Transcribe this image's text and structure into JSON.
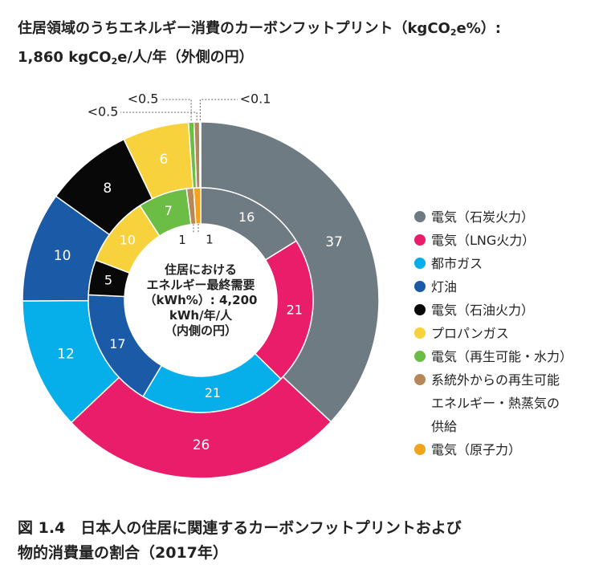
{
  "title": {
    "line1_a": "住居領域のうちエネルギー消費のカーボンフットプリント（kgCO",
    "line1_sub": "2",
    "line1_b": "e%）:",
    "line2_a": "1,860 kgCO",
    "line2_sub": "2",
    "line2_b": "e/人/年（外側の円）"
  },
  "center_label": [
    "住居における",
    "エネルギー最終需要",
    "（kWh%）: 4,200",
    "kWh/年/人",
    "（内側の円）"
  ],
  "legend": [
    {
      "key": "coal",
      "label": "電気（石炭火力）",
      "color": "#6f7b82"
    },
    {
      "key": "lng",
      "label": "電気（LNG火力）",
      "color": "#ea1d6b"
    },
    {
      "key": "city_gas",
      "label": "都市ガス",
      "color": "#06aeea"
    },
    {
      "key": "kerosene",
      "label": "灯油",
      "color": "#1a5aa6"
    },
    {
      "key": "oil",
      "label": "電気（石油火力）",
      "color": "#080808"
    },
    {
      "key": "propane",
      "label": "プロパンガス",
      "color": "#f8d23d"
    },
    {
      "key": "renewable",
      "label": "電気（再生可能・水力）",
      "color": "#6cbd45"
    },
    {
      "key": "offgrid",
      "label": "系統外からの再生可能\nエネルギー・熱蒸気の\n供給",
      "color": "#b68758"
    },
    {
      "key": "nuclear",
      "label": "電気（原子力）",
      "color": "#f3a21c"
    }
  ],
  "caption": "図 1.4　日本人の住居に関連するカーボンフットプリントおよび\n物的消費量の割合（2017年）",
  "chart_data": [
    {
      "type": "pie",
      "name": "outer",
      "slices": [
        {
          "key": "coal",
          "value": 37,
          "label": "37"
        },
        {
          "key": "lng",
          "value": 26,
          "label": "26"
        },
        {
          "key": "city_gas",
          "value": 12,
          "label": "12"
        },
        {
          "key": "kerosene",
          "value": 10,
          "label": "10"
        },
        {
          "key": "oil",
          "value": 8,
          "label": "8"
        },
        {
          "key": "propane",
          "value": 6,
          "label": "6"
        },
        {
          "key": "renewable",
          "value": 0.5,
          "label": "<0.5"
        },
        {
          "key": "offgrid",
          "value": 0.5,
          "label": "<0.5"
        },
        {
          "key": "nuclear",
          "value": 0.1,
          "label": "<0.1"
        }
      ]
    },
    {
      "type": "pie",
      "name": "inner",
      "slices": [
        {
          "key": "coal",
          "value": 16,
          "label": "16"
        },
        {
          "key": "lng",
          "value": 21,
          "label": "21"
        },
        {
          "key": "city_gas",
          "value": 21,
          "label": "21"
        },
        {
          "key": "kerosene",
          "value": 17,
          "label": "17"
        },
        {
          "key": "oil",
          "value": 5,
          "label": "5"
        },
        {
          "key": "propane",
          "value": 10,
          "label": "10"
        },
        {
          "key": "renewable",
          "value": 7,
          "label": "7"
        },
        {
          "key": "offgrid",
          "value": 1,
          "label": "1"
        },
        {
          "key": "nuclear",
          "value": 1,
          "label": "1"
        }
      ]
    }
  ]
}
